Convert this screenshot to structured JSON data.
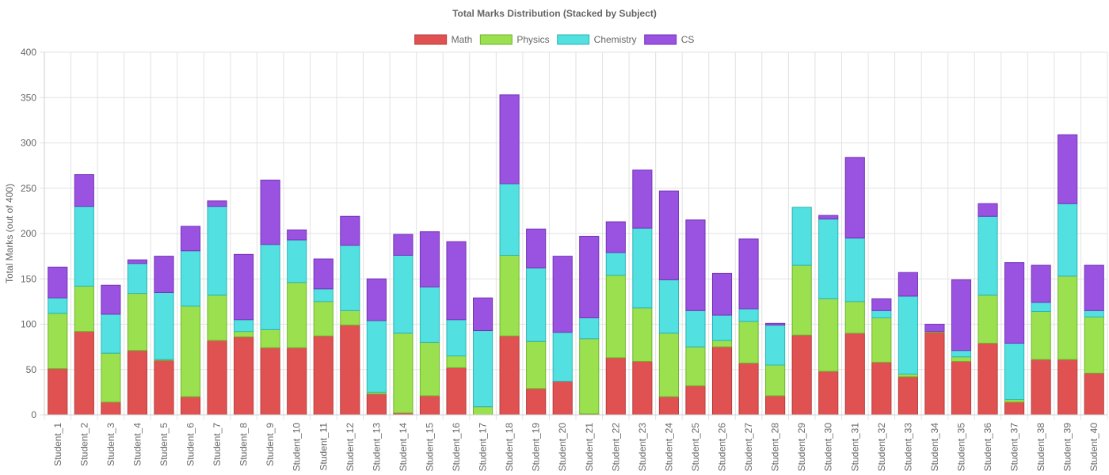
{
  "chart_data": {
    "type": "bar",
    "stacked": true,
    "title": "Total Marks Distribution (Stacked by Subject)",
    "xlabel": "",
    "ylabel": "Total Marks (out of 400)",
    "ylim": [
      0,
      400
    ],
    "yticks": [
      0,
      50,
      100,
      150,
      200,
      250,
      300,
      350,
      400
    ],
    "grid": true,
    "legend_position": "top-center",
    "categories": [
      "Student_1",
      "Student_2",
      "Student_3",
      "Student_4",
      "Student_5",
      "Student_6",
      "Student_7",
      "Student_8",
      "Student_9",
      "Student_10",
      "Student_11",
      "Student_12",
      "Student_13",
      "Student_14",
      "Student_15",
      "Student_16",
      "Student_17",
      "Student_18",
      "Student_19",
      "Student_20",
      "Student_21",
      "Student_22",
      "Student_23",
      "Student_24",
      "Student_25",
      "Student_26",
      "Student_27",
      "Student_28",
      "Student_29",
      "Student_30",
      "Student_31",
      "Student_32",
      "Student_33",
      "Student_34",
      "Student_35",
      "Student_36",
      "Student_37",
      "Student_38",
      "Student_39",
      "Student_40"
    ],
    "series": [
      {
        "name": "Math",
        "color": "#e05252",
        "border": "#b83c3c",
        "values": [
          51,
          92,
          14,
          71,
          60,
          20,
          82,
          86,
          74,
          74,
          87,
          99,
          23,
          2,
          21,
          52,
          0,
          87,
          29,
          37,
          1,
          63,
          59,
          20,
          32,
          75,
          57,
          21,
          88,
          48,
          90,
          58,
          42,
          91,
          59,
          79,
          14,
          61,
          61,
          46
        ]
      },
      {
        "name": "Physics",
        "color": "#9be04f",
        "border": "#6fb52e",
        "values": [
          61,
          50,
          54,
          63,
          1,
          100,
          50,
          6,
          20,
          72,
          38,
          16,
          2,
          88,
          59,
          13,
          9,
          89,
          52,
          0,
          83,
          91,
          59,
          70,
          43,
          7,
          46,
          34,
          77,
          80,
          35,
          49,
          3,
          1,
          5,
          53,
          3,
          53,
          92,
          62
        ]
      },
      {
        "name": "Chemistry",
        "color": "#52e0e0",
        "border": "#2fb5b5",
        "values": [
          17,
          88,
          43,
          33,
          74,
          61,
          98,
          13,
          94,
          47,
          14,
          72,
          79,
          86,
          61,
          40,
          84,
          79,
          81,
          54,
          23,
          25,
          88,
          59,
          40,
          28,
          14,
          44,
          64,
          88,
          70,
          8,
          86,
          0,
          7,
          87,
          62,
          10,
          80,
          7
        ]
      },
      {
        "name": "CS",
        "color": "#9a52e0",
        "border": "#7434b8",
        "values": [
          34,
          35,
          32,
          4,
          40,
          27,
          6,
          72,
          71,
          11,
          33,
          32,
          46,
          23,
          61,
          86,
          36,
          98,
          43,
          84,
          90,
          34,
          64,
          98,
          100,
          46,
          77,
          2,
          0,
          4,
          89,
          13,
          26,
          8,
          78,
          14,
          89,
          41,
          76,
          50
        ]
      }
    ]
  }
}
